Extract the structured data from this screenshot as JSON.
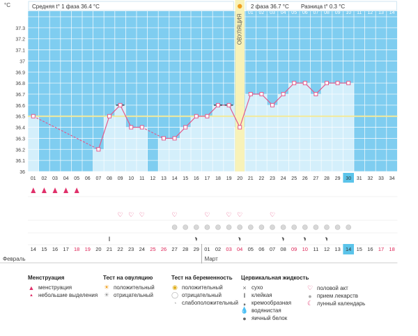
{
  "chart_data": {
    "type": "line",
    "y_unit": "°C",
    "ylim": [
      36.0,
      37.4
    ],
    "yticks": [
      "36",
      "36.1",
      "36.2",
      "36.3",
      "36.4",
      "36.5",
      "36.6",
      "36.7",
      "36.8",
      "36.9",
      "37",
      "37.1",
      "37.2",
      "37.3"
    ],
    "cycle_days": [
      "01",
      "02",
      "03",
      "04",
      "05",
      "06",
      "07",
      "08",
      "09",
      "10",
      "11",
      "12",
      "13",
      "14",
      "15",
      "16",
      "17",
      "18",
      "19",
      "20",
      "21",
      "22",
      "23",
      "24",
      "25",
      "26",
      "27",
      "28",
      "29",
      "30",
      "31",
      "32",
      "33",
      "34"
    ],
    "temperatures": [
      36.5,
      null,
      null,
      null,
      null,
      null,
      36.2,
      36.5,
      36.6,
      36.4,
      36.4,
      null,
      36.3,
      36.3,
      36.4,
      36.5,
      36.5,
      36.6,
      36.6,
      36.4,
      36.7,
      36.7,
      36.6,
      36.7,
      36.8,
      36.8,
      36.7,
      36.8,
      36.8,
      36.8,
      null,
      null,
      null,
      null
    ],
    "excluded_days": [
      "09",
      "18",
      "19"
    ],
    "coverline": 36.5,
    "ovulation_day": "20",
    "ovulation_label": "ОВУЛЯЦИЯ",
    "current_day": "30",
    "phase1_text": "Средняя t° 1 фаза  36.4 °C",
    "phase2_text": "2 фаза  36.7 °C",
    "diff_text": "Разница t°  0.3 °C",
    "phase2_day_labels": [
      "01",
      "02",
      "03",
      "04",
      "05",
      "06",
      "07",
      "08",
      "09",
      "10",
      "11",
      "12",
      "13",
      "14"
    ],
    "calendar_dates": [
      "14",
      "15",
      "16",
      "17",
      "18",
      "19",
      "20",
      "21",
      "22",
      "23",
      "24",
      "25",
      "26",
      "27",
      "28",
      "29",
      "01",
      "02",
      "03",
      "04",
      "05",
      "06",
      "07",
      "08",
      "09",
      "10",
      "11",
      "12",
      "13",
      "14",
      "15",
      "16",
      "17",
      "18"
    ],
    "calendar_colors": [
      "#333333",
      "#333333",
      "#333333",
      "#333333",
      "#dd2255",
      "#dd2255",
      "#333333",
      "#333333",
      "#333333",
      "#333333",
      "#333333",
      "#dd2255",
      "#dd2255",
      "#333333",
      "#333333",
      "#333333",
      "#333333",
      "#333333",
      "#dd2255",
      "#dd2255",
      "#333333",
      "#333333",
      "#333333",
      "#333333",
      "#dd2255",
      "#dd2255",
      "#333333",
      "#333333",
      "#333333",
      "#333333",
      "#333333",
      "#333333",
      "#dd2255",
      "#dd2255"
    ],
    "month_1": "Февраль",
    "month_2": "Март",
    "menstruation_days": [
      "01",
      "02",
      "03",
      "04",
      "05"
    ],
    "heart_days": [
      "09",
      "10",
      "11",
      "14",
      "17",
      "19",
      "20",
      "23"
    ],
    "pill_days": [
      "14",
      "15",
      "16",
      "17",
      "18",
      "19",
      "20",
      "21",
      "22",
      "23",
      "24",
      "25",
      "26",
      "27",
      "28",
      "29",
      "30"
    ],
    "sticky_days": [
      "08"
    ],
    "creamy_days": [
      "16",
      "20",
      "24",
      "26",
      "28"
    ],
    "colors": {
      "plot_bg": "#7fcdf0",
      "bar_fill": "#d4effb",
      "grid": "#ffffff",
      "line": "#e25a8c",
      "coverline": "#f3ea9a",
      "ovulation": "#f8f2b8",
      "highlight": "#5bc4ea"
    },
    "legend": {
      "menstruation": {
        "title": "Менструация",
        "items": [
          "менструация",
          "небольшие выделения"
        ]
      },
      "ovulation_test": {
        "title": "Тест на овуляцию",
        "items": [
          "положительный",
          "отрицательный"
        ]
      },
      "pregnancy_test": {
        "title": "Тест на беременность",
        "items": [
          "положительный",
          "отрицательный",
          "слабоположительный"
        ]
      },
      "cervical": {
        "title": "Цервикальная жидкость",
        "items": [
          "сухо",
          "клейкая",
          "кремообразная",
          "водянистая",
          "яичный белок"
        ]
      },
      "other": {
        "items": [
          "половой акт",
          "прием лекарств",
          "лунный календарь"
        ]
      }
    }
  }
}
